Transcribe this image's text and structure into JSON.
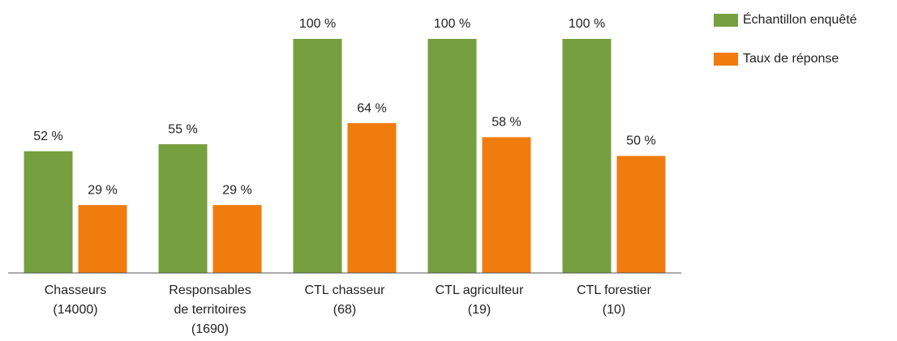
{
  "chart_data": {
    "type": "bar",
    "categories": [
      [
        "Chasseurs",
        "(14000)"
      ],
      [
        "Responsables",
        "de territoires",
        "(1690)"
      ],
      [
        "CTL chasseur",
        "(68)"
      ],
      [
        "CTL agriculteur",
        "(19)"
      ],
      [
        "CTL forestier",
        "(10)"
      ]
    ],
    "series": [
      {
        "name": "Échantillon enquêté",
        "color": "#76a03f",
        "values": [
          52,
          55,
          100,
          100,
          100
        ],
        "value_labels": [
          "52 %",
          "55 %",
          "100 %",
          "100 %",
          "100 %"
        ]
      },
      {
        "name": "Taux de réponse",
        "color": "#f07c0e",
        "values": [
          29,
          29,
          64,
          58,
          50
        ],
        "value_labels": [
          "29 %",
          "29 %",
          "64 %",
          "58 %",
          "50 %"
        ]
      }
    ],
    "legend": "top-right"
  }
}
